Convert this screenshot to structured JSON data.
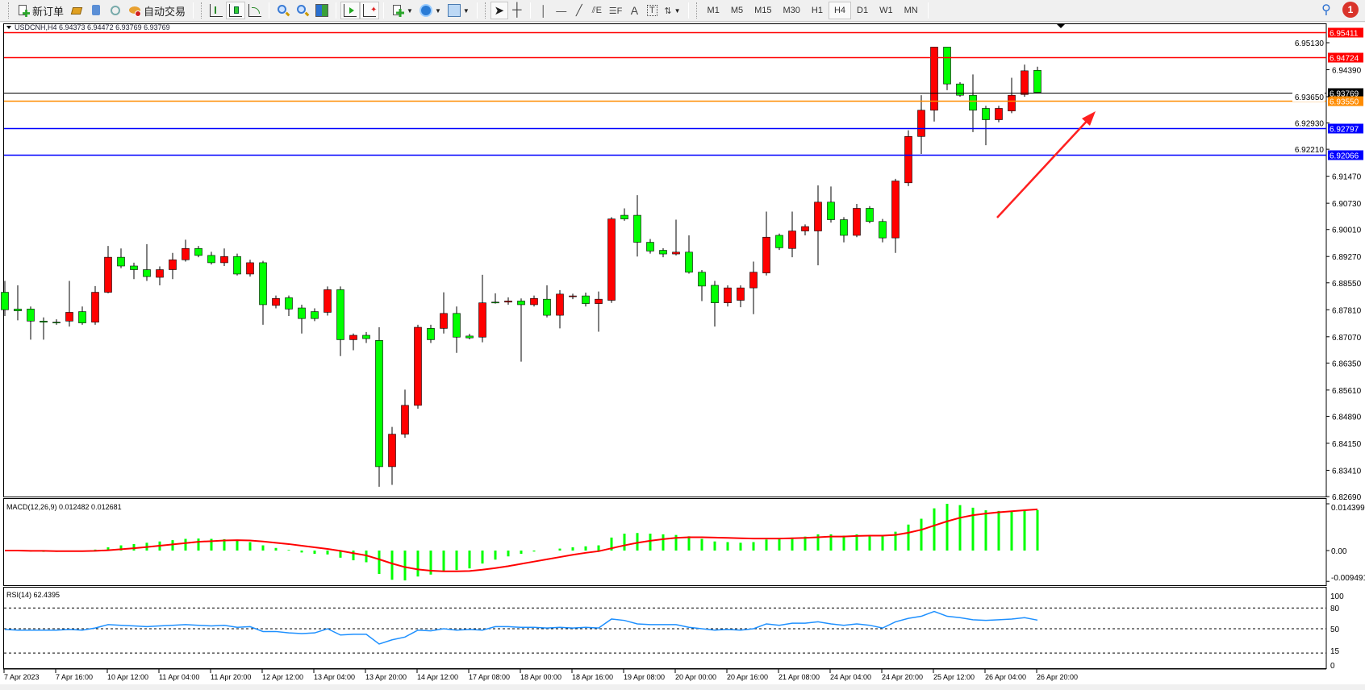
{
  "toolbar": {
    "new_order": "新订单",
    "auto_trading": "自动交易",
    "timeframes": [
      "M1",
      "M5",
      "M15",
      "M30",
      "H1",
      "H4",
      "D1",
      "W1",
      "MN"
    ],
    "selected_timeframe": "H4",
    "notification_count": "1",
    "icons": [
      "new-order-icon",
      "market-watch-icon",
      "navigator-icon",
      "signals-icon",
      "auto-trading-icon",
      "bar-chart-icon",
      "candlestick-icon",
      "line-chart-icon",
      "zoom-in-icon",
      "zoom-out-icon",
      "tile-windows-icon",
      "auto-scroll-icon",
      "chart-shift-icon",
      "indicators-icon",
      "periods-icon",
      "templates-icon",
      "cursor-icon",
      "crosshair-icon",
      "vertical-line-icon",
      "horizontal-line-icon",
      "trendline-icon",
      "equidistant-channel-icon",
      "fibonacci-icon",
      "text-icon",
      "text-label-icon",
      "arrows-icon",
      "search-icon",
      "notification-icon"
    ]
  },
  "chart": {
    "title": "USDCNH,H4  6.94373 6.94472 6.93769 6.93769",
    "macd_label": "MACD(12,26,9) 0.012482 0.012681",
    "rsi_label": "RSI(14) 62.4395",
    "colors": {
      "bull": "#ff0000",
      "bear": "#00ff00",
      "macd_hist": "#00ff00",
      "signal": "#ff0000",
      "rsi": "#1e90ff",
      "arrow": "#ff2020"
    }
  },
  "chart_data": {
    "type": "candlestick",
    "symbol": "USDCNH",
    "timeframe": "H4",
    "time_labels": [
      "7 Apr 2023",
      "7 Apr 16:00",
      "10 Apr 12:00",
      "11 Apr 04:00",
      "11 Apr 20:00",
      "12 Apr 12:00",
      "13 Apr 04:00",
      "13 Apr 20:00",
      "14 Apr 12:00",
      "17 Apr 08:00",
      "18 Apr 00:00",
      "18 Apr 16:00",
      "19 Apr 08:00",
      "20 Apr 00:00",
      "20 Apr 16:00",
      "21 Apr 08:00",
      "24 Apr 04:00",
      "24 Apr 20:00",
      "25 Apr 12:00",
      "26 Apr 04:00",
      "26 Apr 20:00"
    ],
    "price_ticks": [
      "6.95130",
      "6.94390",
      "6.93650",
      "6.92930",
      "6.92210",
      "6.91470",
      "6.90730",
      "6.90010",
      "6.89270",
      "6.88550",
      "6.87810",
      "6.87070",
      "6.86350",
      "6.85610",
      "6.84890",
      "6.84150",
      "6.83410",
      "6.82690"
    ],
    "ylim": [
      6.8269,
      6.9576
    ],
    "price_lines": [
      {
        "price": "6.95411",
        "color": "#ff0000"
      },
      {
        "price": "6.94724",
        "color": "#ff0000"
      },
      {
        "price": "6.93769",
        "color": "#000000"
      },
      {
        "price": "6.93550",
        "color": "#ff8c00"
      },
      {
        "price": "6.92797",
        "color": "#0000ff"
      },
      {
        "price": "6.92066",
        "color": "#0000ff"
      }
    ],
    "ohlc": [
      [
        6.8829,
        6.886,
        6.8764,
        6.8781
      ],
      [
        6.8783,
        6.8848,
        6.8752,
        6.8778
      ],
      [
        6.8783,
        6.879,
        6.8699,
        6.875
      ],
      [
        6.875,
        6.876,
        6.8699,
        6.8747
      ],
      [
        6.8747,
        6.8755,
        6.874,
        6.8747
      ],
      [
        6.875,
        6.886,
        6.8735,
        6.8774
      ],
      [
        6.8776,
        6.879,
        6.874,
        6.8745
      ],
      [
        6.8747,
        6.8846,
        6.874,
        6.8829
      ],
      [
        6.8829,
        6.8956,
        6.8826,
        6.8925
      ],
      [
        6.8925,
        6.8949,
        6.8895,
        6.8901
      ],
      [
        6.8901,
        6.891,
        6.8865,
        6.8891
      ],
      [
        6.8891,
        6.8961,
        6.886,
        6.8872
      ],
      [
        6.887,
        6.89,
        6.8848,
        6.8891
      ],
      [
        6.8891,
        6.8937,
        6.8865,
        6.8918
      ],
      [
        6.8918,
        6.8973,
        6.8913,
        6.8949
      ],
      [
        6.8949,
        6.8956,
        6.8925,
        6.893
      ],
      [
        6.893,
        6.894,
        6.8905,
        6.891
      ],
      [
        6.891,
        6.8949,
        6.8901,
        6.8927
      ],
      [
        6.8927,
        6.8935,
        6.8875,
        6.8879
      ],
      [
        6.8879,
        6.8918,
        6.8872,
        6.891
      ],
      [
        6.891,
        6.8915,
        6.874,
        6.8795
      ],
      [
        6.8793,
        6.882,
        6.8785,
        6.8812
      ],
      [
        6.8814,
        6.882,
        6.8764,
        6.8783
      ],
      [
        6.8786,
        6.8795,
        6.8716,
        6.8757
      ],
      [
        6.8776,
        6.8785,
        6.875,
        6.8757
      ],
      [
        6.8774,
        6.8845,
        6.8765,
        6.8836
      ],
      [
        6.8836,
        6.8845,
        6.8654,
        6.8699
      ],
      [
        6.8699,
        6.8716,
        6.867,
        6.8711
      ],
      [
        6.8711,
        6.872,
        6.869,
        6.8702
      ],
      [
        6.8697,
        6.8733,
        6.8296,
        6.8351
      ],
      [
        6.8351,
        6.846,
        6.8301,
        6.844
      ],
      [
        6.844,
        6.8562,
        6.843,
        6.8519
      ],
      [
        6.8519,
        6.874,
        6.851,
        6.8733
      ],
      [
        6.873,
        6.874,
        6.869,
        6.8699
      ],
      [
        6.873,
        6.8829,
        6.8716,
        6.8771
      ],
      [
        6.8771,
        6.879,
        6.8663,
        6.8706
      ],
      [
        6.8709,
        6.8715,
        6.87,
        6.8704
      ],
      [
        6.8706,
        6.8877,
        6.8692,
        6.88
      ],
      [
        6.8802,
        6.8826,
        6.8798,
        6.8802
      ],
      [
        6.8802,
        6.8815,
        6.8795,
        6.8805
      ],
      [
        6.8805,
        6.8812,
        6.8639,
        6.8795
      ],
      [
        6.8795,
        6.882,
        6.879,
        6.8812
      ],
      [
        6.881,
        6.8848,
        6.876,
        6.8766
      ],
      [
        6.8766,
        6.8835,
        6.873,
        6.8824
      ],
      [
        6.8817,
        6.8825,
        6.881,
        6.8819
      ],
      [
        6.8819,
        6.8828,
        6.879,
        6.8798
      ],
      [
        6.8798,
        6.8831,
        6.8721,
        6.881
      ],
      [
        6.8807,
        6.9035,
        6.88,
        6.903
      ],
      [
        6.904,
        6.9059,
        6.9025,
        6.903
      ],
      [
        6.904,
        6.9095,
        6.8927,
        6.8966
      ],
      [
        6.8966,
        6.8975,
        6.8935,
        6.8942
      ],
      [
        6.8944,
        6.895,
        6.8925,
        6.8934
      ],
      [
        6.8934,
        6.9028,
        6.893,
        6.8939
      ],
      [
        6.8939,
        6.8985,
        6.888,
        6.8884
      ],
      [
        6.8884,
        6.889,
        6.8805,
        6.8846
      ],
      [
        6.8848,
        6.886,
        6.8735,
        6.88
      ],
      [
        6.88,
        6.8848,
        6.879,
        6.8841
      ],
      [
        6.8807,
        6.8848,
        6.8788,
        6.8841
      ],
      [
        6.8841,
        6.8913,
        6.8769,
        6.8884
      ],
      [
        6.8882,
        6.905,
        6.8875,
        6.898
      ],
      [
        6.8985,
        6.899,
        6.8945,
        6.8951
      ],
      [
        6.8949,
        6.905,
        6.8925,
        6.8997
      ],
      [
        6.8997,
        6.9015,
        6.8985,
        6.9009
      ],
      [
        6.8997,
        6.9122,
        6.8903,
        6.9076
      ],
      [
        6.9076,
        6.9119,
        6.902,
        6.9028
      ],
      [
        6.9028,
        6.9035,
        6.8966,
        6.8985
      ],
      [
        6.8985,
        6.9071,
        6.898,
        6.9059
      ],
      [
        6.9059,
        6.9065,
        6.9018,
        6.9023
      ],
      [
        6.9023,
        6.903,
        6.8966,
        6.8978
      ],
      [
        6.8978,
        6.914,
        6.8937,
        6.9134
      ],
      [
        6.9129,
        6.9273,
        6.912,
        6.9256
      ],
      [
        6.9256,
        6.9369,
        6.9208,
        6.9328
      ],
      [
        6.9328,
        6.9501,
        6.9297,
        6.9501
      ],
      [
        6.9501,
        6.9501,
        6.9383,
        6.94
      ],
      [
        6.94,
        6.9405,
        6.9365,
        6.9369
      ],
      [
        6.9369,
        6.9426,
        6.9268,
        6.9328
      ],
      [
        6.9333,
        6.934,
        6.9232,
        6.9302
      ],
      [
        6.9302,
        6.934,
        6.9295,
        6.9333
      ],
      [
        6.9326,
        6.9417,
        6.932,
        6.9369
      ],
      [
        6.9371,
        6.9453,
        6.9365,
        6.9436
      ],
      [
        6.94373,
        6.94472,
        6.93769,
        6.93769
      ]
    ],
    "macd": {
      "axis_labels": [
        "0.014399",
        "0.00",
        "-0.009491"
      ],
      "ylim": [
        -0.009491,
        0.014399
      ],
      "histogram": [
        0,
        -0.0002,
        -0.0003,
        -0.0004,
        -0.0004,
        -0.0003,
        -0.0001,
        0.0003,
        0.001,
        0.0016,
        0.002,
        0.0024,
        0.0028,
        0.0032,
        0.0036,
        0.0037,
        0.0036,
        0.0035,
        0.0031,
        0.0026,
        0.0016,
        0.0008,
        0.0002,
        -0.0006,
        -0.001,
        -0.0012,
        -0.0022,
        -0.003,
        -0.0036,
        -0.0072,
        -0.009,
        -0.0092,
        -0.008,
        -0.0074,
        -0.0064,
        -0.006,
        -0.0055,
        -0.004,
        -0.0028,
        -0.0018,
        -0.001,
        -0.0003,
        0,
        0.0006,
        0.001,
        0.0013,
        0.0016,
        0.004,
        0.0052,
        0.0054,
        0.0052,
        0.005,
        0.0048,
        0.0044,
        0.0036,
        0.0028,
        0.0026,
        0.0024,
        0.0026,
        0.0034,
        0.0036,
        0.004,
        0.0043,
        0.005,
        0.005,
        0.0046,
        0.005,
        0.0048,
        0.0044,
        0.0058,
        0.008,
        0.0098,
        0.013,
        0.0144,
        0.014,
        0.0132,
        0.0124,
        0.0122,
        0.0122,
        0.0126,
        0.012482
      ],
      "signal": [
        0,
        0,
        -0.0001,
        -0.0001,
        -0.0002,
        -0.0002,
        -0.0002,
        -0.0001,
        0.0001,
        0.0004,
        0.0007,
        0.0011,
        0.0015,
        0.0019,
        0.0023,
        0.0027,
        0.0029,
        0.0031,
        0.0032,
        0.0031,
        0.0028,
        0.0024,
        0.002,
        0.0015,
        0.001,
        0.0005,
        -0.0001,
        -0.0008,
        -0.0015,
        -0.0027,
        -0.004,
        -0.0051,
        -0.0058,
        -0.0062,
        -0.0064,
        -0.0064,
        -0.0063,
        -0.0059,
        -0.0054,
        -0.0048,
        -0.0041,
        -0.0034,
        -0.0027,
        -0.002,
        -0.0013,
        -0.0007,
        -0.0002,
        0.0007,
        0.0016,
        0.0024,
        0.003,
        0.0035,
        0.0039,
        0.0041,
        0.0041,
        0.004,
        0.0039,
        0.0038,
        0.0037,
        0.0037,
        0.0037,
        0.0038,
        0.0039,
        0.0041,
        0.0043,
        0.0043,
        0.0045,
        0.0046,
        0.0046,
        0.0048,
        0.0055,
        0.0064,
        0.0077,
        0.009,
        0.0101,
        0.0109,
        0.0114,
        0.0118,
        0.0121,
        0.0124,
        0.012681
      ]
    },
    "rsi": {
      "axis_labels": [
        "100",
        "80",
        "50",
        "15",
        "0"
      ],
      "levels": [
        80,
        50,
        15
      ],
      "ylim": [
        0,
        100
      ],
      "values": [
        49,
        48,
        48,
        48,
        48,
        49,
        48,
        51,
        56,
        55,
        54,
        53,
        54,
        55,
        56,
        55,
        54,
        55,
        52,
        53,
        46,
        46,
        44,
        43,
        44,
        50,
        41,
        42,
        42,
        28,
        34,
        38,
        48,
        47,
        50,
        48,
        49,
        48,
        53,
        53,
        52,
        52,
        51,
        52,
        51,
        52,
        51,
        64,
        62,
        57,
        56,
        56,
        56,
        52,
        50,
        48,
        49,
        48,
        50,
        57,
        55,
        58,
        58,
        60,
        57,
        55,
        57,
        55,
        51,
        60,
        65,
        68,
        75,
        68,
        66,
        63,
        62,
        63,
        64,
        66,
        62.4395
      ]
    },
    "annotations": [
      {
        "type": "arrow",
        "color": "#ff2020",
        "direction": "up-right"
      }
    ]
  }
}
